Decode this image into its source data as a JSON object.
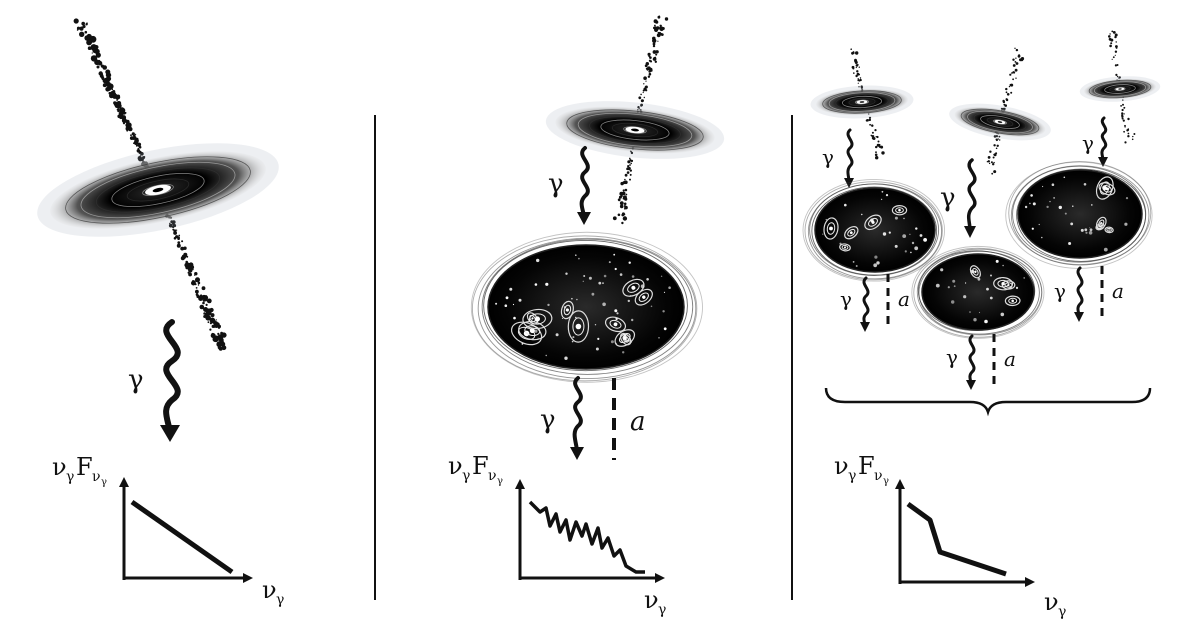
{
  "labels": {
    "photon": "γ",
    "axion": "a",
    "nu": "ν",
    "F": "F",
    "sub": "γ"
  },
  "panels": [
    {
      "id": "blazar-alone",
      "spectrum_shape": "smooth power-law decline"
    },
    {
      "id": "blazar-through-cluster",
      "spectrum_shape": "decline with oscillatory absorption features"
    },
    {
      "id": "many-sources-through-clusters",
      "spectrum_shape": "decline with step-like drop"
    }
  ],
  "colors": {
    "ink": "#111111",
    "background": "#ffffff",
    "disk_glow": "#9aa6b8"
  }
}
